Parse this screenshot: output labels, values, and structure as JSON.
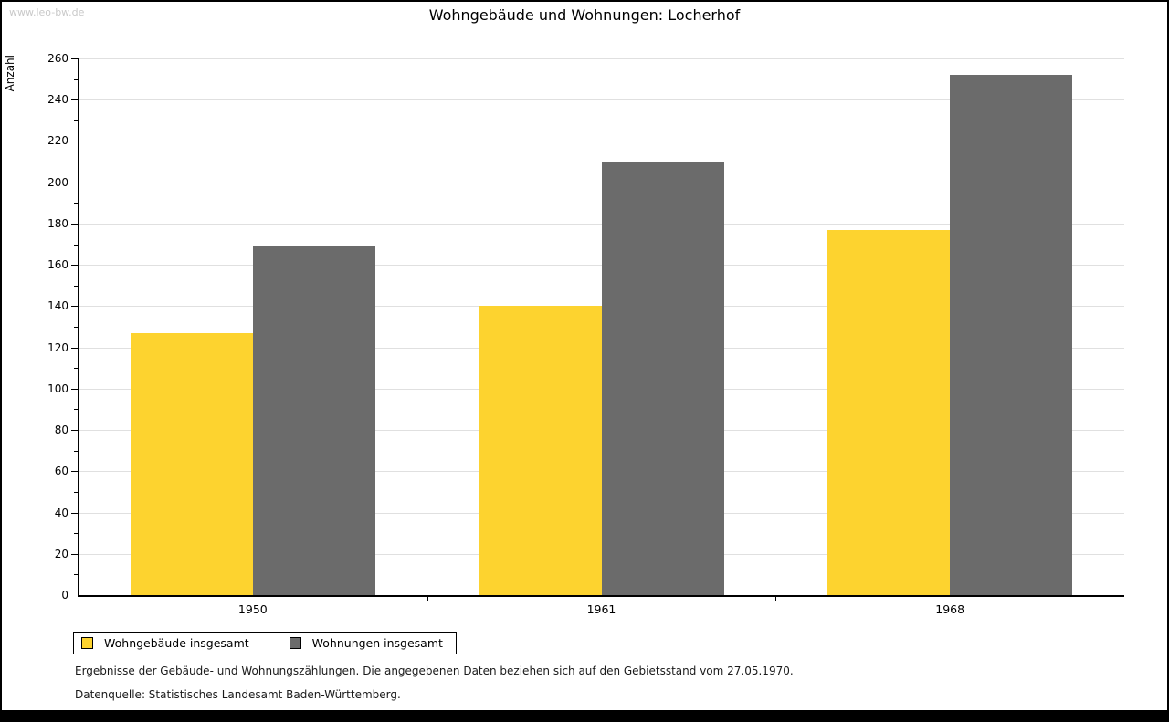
{
  "watermark": "www.leo-bw.de",
  "chart_data": {
    "type": "bar",
    "title": "Wohngebäude und Wohnungen: Locherhof",
    "xlabel": "",
    "ylabel": "Anzahl",
    "categories": [
      "1950",
      "1961",
      "1968"
    ],
    "series": [
      {
        "name": "Wohngebäude insgesamt",
        "color": "#FDD32F",
        "values": [
          127,
          140,
          177
        ]
      },
      {
        "name": "Wohnungen insgesamt",
        "color": "#6B6B6B",
        "values": [
          169,
          210,
          252
        ]
      }
    ],
    "ylim": [
      0,
      260
    ],
    "ytick_step": 20,
    "minor_tick_step": 10,
    "grid": true,
    "legend_position": "bottom-left-box"
  },
  "footer": {
    "line1": "Ergebnisse der Gebäude- und Wohnungszählungen. Die angegebenen Daten beziehen sich auf den Gebietsstand vom 27.05.1970.",
    "line2": "Datenquelle: Statistisches Landesamt Baden-Württemberg."
  },
  "colors": {
    "gridline": "#e0e0e0",
    "axis": "#000000",
    "watermark": "#c9c9c9",
    "background": "#ffffff"
  }
}
